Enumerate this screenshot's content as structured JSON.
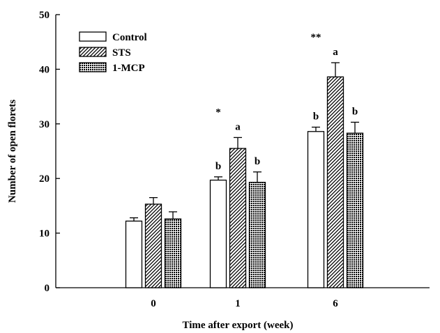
{
  "chart_data": {
    "type": "bar",
    "xlabel": "Time after export (week)",
    "ylabel": "Number of open florets",
    "categories": [
      "0",
      "1",
      "6"
    ],
    "ylim": [
      0,
      50
    ],
    "yticks": [
      0,
      10,
      20,
      30,
      40,
      50
    ],
    "grid": false,
    "legend_position": "top-left",
    "series": [
      {
        "name": "Control",
        "pattern": "open",
        "values": [
          12.2,
          19.7,
          28.6
        ],
        "errors": [
          0.6,
          0.6,
          0.8
        ],
        "labels": [
          "",
          "b",
          "b"
        ]
      },
      {
        "name": "STS",
        "pattern": "hatched",
        "values": [
          15.3,
          25.5,
          38.6
        ],
        "errors": [
          1.2,
          2.0,
          2.6
        ],
        "labels": [
          "",
          "a",
          "a"
        ]
      },
      {
        "name": "1-MCP",
        "pattern": "crosshatched",
        "values": [
          12.6,
          19.3,
          28.3
        ],
        "errors": [
          1.3,
          1.9,
          2.0
        ],
        "labels": [
          "",
          "b",
          "b"
        ]
      }
    ],
    "significance": [
      "",
      "*",
      "**"
    ]
  }
}
